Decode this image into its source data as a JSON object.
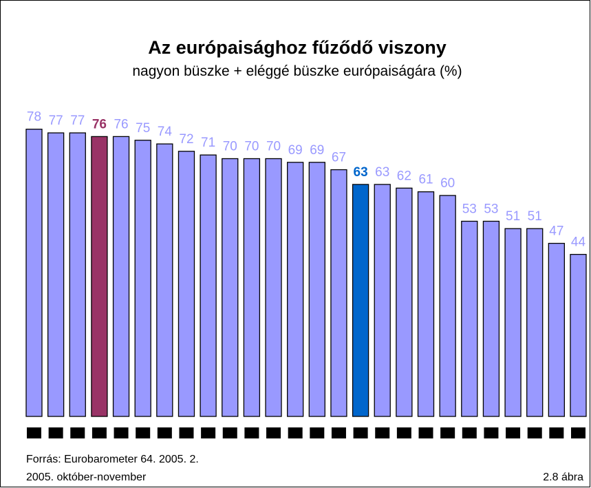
{
  "chart_data": {
    "type": "bar",
    "title": "Az európaisághoz fűződő viszony",
    "subtitle": "nagyon büszke + eléggé büszke európaiságára  (%)",
    "categories": [
      null,
      null,
      null,
      null,
      null,
      null,
      null,
      null,
      null,
      null,
      null,
      null,
      null,
      null,
      null,
      null,
      null,
      null,
      null,
      null,
      null,
      null,
      null,
      null,
      null,
      null
    ],
    "values": [
      78,
      77,
      77,
      76,
      76,
      75,
      74,
      72,
      71,
      70,
      70,
      70,
      69,
      69,
      67,
      63,
      63,
      62,
      61,
      60,
      53,
      53,
      51,
      51,
      47,
      44
    ],
    "colors": [
      "#9999ff",
      "#9999ff",
      "#9999ff",
      "#993366",
      "#9999ff",
      "#9999ff",
      "#9999ff",
      "#9999ff",
      "#9999ff",
      "#9999ff",
      "#9999ff",
      "#9999ff",
      "#9999ff",
      "#9999ff",
      "#9999ff",
      "#0066cc",
      "#9999ff",
      "#9999ff",
      "#9999ff",
      "#9999ff",
      "#9999ff",
      "#9999ff",
      "#9999ff",
      "#9999ff",
      "#9999ff",
      "#9999ff"
    ],
    "ylim": [
      0,
      80
    ],
    "source": "Forrás: Eurobarometer 64. 2005. 2.",
    "date_note": "2005. október-november",
    "figure_label": "2.8 ábra"
  }
}
